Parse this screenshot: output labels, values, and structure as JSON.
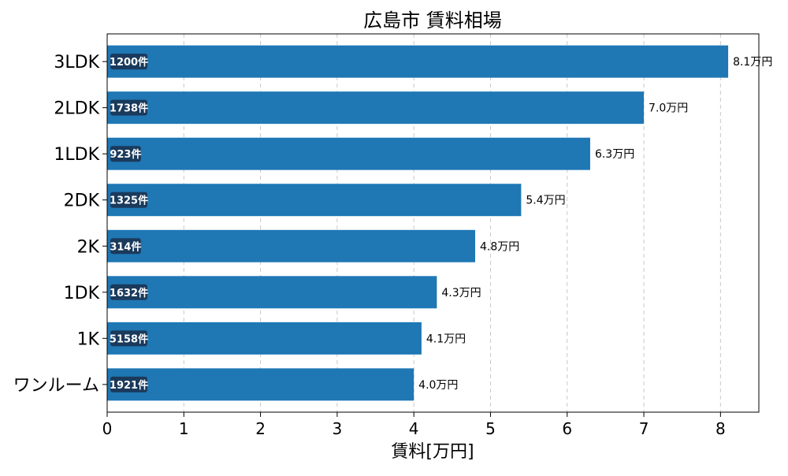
{
  "chart_data": {
    "type": "bar",
    "orientation": "horizontal",
    "title": "広島市 賃料相場",
    "xlabel": "賃料[万円]",
    "ylabel": "",
    "xlim": [
      0,
      8.5
    ],
    "xticks": [
      0,
      1,
      2,
      3,
      4,
      5,
      6,
      7,
      8
    ],
    "grid": "vertical dashed",
    "value_suffix": "万円",
    "count_suffix": "件",
    "bar_color": "#1f77b4",
    "badge_color": "#1a3a5c",
    "categories": [
      "3LDK",
      "2LDK",
      "1LDK",
      "2DK",
      "2K",
      "1DK",
      "1K",
      "ワンルーム"
    ],
    "values": [
      8.1,
      7.0,
      6.3,
      5.4,
      4.8,
      4.3,
      4.1,
      4.0
    ],
    "counts": [
      1200,
      1738,
      923,
      1325,
      314,
      1632,
      5158,
      1921
    ]
  }
}
